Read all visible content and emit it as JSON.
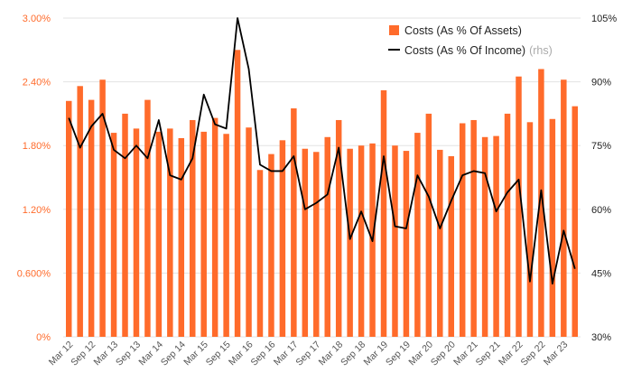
{
  "chart_data": {
    "type": "bar+line",
    "title": "",
    "x_ticks": [
      "Mar 12",
      "Sep 12",
      "Mar 13",
      "Sep 13",
      "Mar 14",
      "Sep 14",
      "Mar 15",
      "Sep 15",
      "Mar 16",
      "Sep 16",
      "Mar 17",
      "Sep 17",
      "Mar 18",
      "Sep 18",
      "Mar 19",
      "Sep 19",
      "Mar 20",
      "Sep 20",
      "Mar 21",
      "Sep 21",
      "Mar 22",
      "Sep 22",
      "Mar 23"
    ],
    "left_axis": {
      "ticks": [
        "0%",
        "0.600%",
        "1.20%",
        "1.80%",
        "2.40%",
        "3.00%"
      ],
      "min": 0,
      "max": 3.0,
      "color": "#ff6b2b"
    },
    "right_axis": {
      "ticks": [
        "30%",
        "45%",
        "60%",
        "75%",
        "90%",
        "105%"
      ],
      "min": 30,
      "max": 105,
      "color": "#222222"
    },
    "grid": true,
    "legend": {
      "position": "top-right",
      "bar_label": "Costs (As % Of Assets)",
      "line_label": "Costs (As % Of Income)",
      "line_note": "(rhs)"
    },
    "series": [
      {
        "name": "Costs (As % Of Assets)",
        "type": "bar",
        "axis": "left",
        "color": "#ff6b2b",
        "values": [
          2.22,
          2.36,
          2.23,
          2.42,
          1.92,
          2.1,
          1.96,
          2.23,
          1.93,
          1.96,
          1.87,
          2.04,
          1.93,
          2.06,
          1.91,
          2.7,
          1.97,
          1.57,
          1.72,
          1.85,
          2.15,
          1.77,
          1.74,
          1.88,
          2.04,
          1.77,
          1.8,
          1.82,
          2.32,
          1.8,
          1.75,
          1.92,
          2.1,
          1.76,
          1.7,
          2.01,
          2.04,
          1.88,
          1.89,
          2.1,
          2.45,
          2.02,
          2.52,
          2.05,
          2.42,
          2.17
        ]
      },
      {
        "name": "Costs (As % Of Income)",
        "type": "line",
        "axis": "right",
        "color": "#000000",
        "values": [
          81.5,
          74.5,
          79.5,
          82.5,
          74.0,
          72.0,
          75.0,
          72.0,
          81.0,
          68.0,
          67.0,
          72.0,
          87.0,
          80.0,
          79.0,
          105.0,
          93.0,
          70.5,
          69.0,
          69.0,
          72.5,
          60.0,
          61.5,
          63.5,
          74.5,
          53.0,
          59.5,
          52.5,
          72.5,
          56.0,
          55.5,
          68.0,
          63.0,
          55.5,
          62.0,
          68.0,
          69.0,
          68.5,
          59.5,
          64.0,
          67.0,
          43.0,
          64.5,
          42.5,
          55.0,
          46.0
        ]
      }
    ]
  }
}
